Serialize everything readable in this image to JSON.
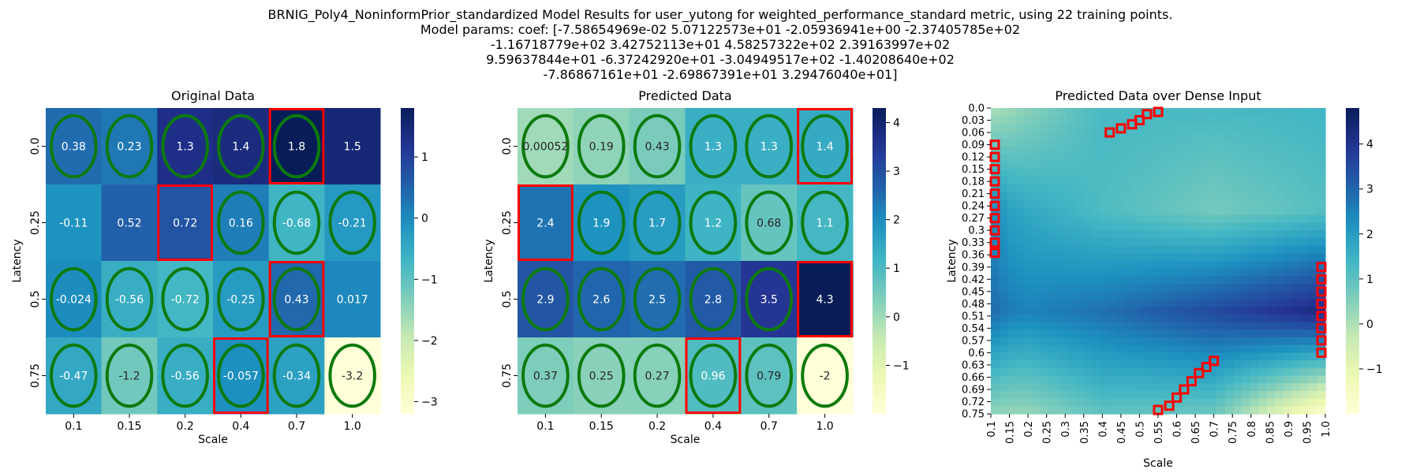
{
  "figure": {
    "title_lines": [
      "BRNIG_Poly4_NoninformPrior_standardized Model Results for user_yutong for weighted_performance_standard metric, using 22 training points.",
      "Model params: coef: [-7.58654969e-02  5.07122573e+01 -2.05936941e+00 -2.37405785e+02",
      "-1.16718779e+02  3.42752113e+01  4.58257322e+02  2.39163997e+02",
      "9.59637844e+01 -6.37242920e+01 -3.04949517e+02 -1.40208640e+02",
      "-7.86867161e+01 -2.69867391e+01  3.29476040e+01]"
    ]
  },
  "colormap": {
    "name": "YlGnBu",
    "stops": [
      "#ffffd9",
      "#edf8b1",
      "#c7e9b4",
      "#7fcdbb",
      "#41b6c4",
      "#1d91c0",
      "#225ea8",
      "#253494",
      "#081d58"
    ]
  },
  "colors": {
    "ellipse": "#0d7a0d",
    "highlight": "#ff0000",
    "text_light": "#ffffff",
    "text_dark": "#262626"
  },
  "chart_data": [
    {
      "type": "heatmap",
      "title": "Original Data",
      "xlabel": "Scale",
      "ylabel": "Latency",
      "x_categories": [
        "0.1",
        "0.15",
        "0.2",
        "0.4",
        "0.7",
        "1.0"
      ],
      "y_categories": [
        "0.0",
        "0.25",
        "0.5",
        "0.75"
      ],
      "values": [
        [
          0.38,
          0.23,
          1.3,
          1.4,
          1.8,
          1.5
        ],
        [
          -0.11,
          0.52,
          0.72,
          0.16,
          -0.68,
          -0.21
        ],
        [
          -0.024,
          -0.56,
          -0.72,
          -0.25,
          0.43,
          0.017
        ],
        [
          -0.47,
          -1.2,
          -0.56,
          -0.057,
          -0.34,
          -3.2
        ]
      ],
      "labels": [
        [
          "0.38",
          "0.23",
          "1.3",
          "1.4",
          "1.8",
          "1.5"
        ],
        [
          "-0.11",
          "0.52",
          "0.72",
          "0.16",
          "-0.68",
          "-0.21"
        ],
        [
          "-0.024",
          "-0.56",
          "-0.72",
          "-0.25",
          "0.43",
          "0.017"
        ],
        [
          "-0.47",
          "-1.2",
          "-0.56",
          "-0.057",
          "-0.34",
          "-3.2"
        ]
      ],
      "ellipses": [
        [
          0,
          0
        ],
        [
          0,
          1
        ],
        [
          0,
          2
        ],
        [
          0,
          3
        ],
        [
          0,
          4
        ],
        [
          1,
          3
        ],
        [
          1,
          4
        ],
        [
          1,
          5
        ],
        [
          2,
          0
        ],
        [
          2,
          1
        ],
        [
          2,
          2
        ],
        [
          2,
          3
        ],
        [
          2,
          4
        ],
        [
          3,
          0
        ],
        [
          3,
          1
        ],
        [
          3,
          2
        ],
        [
          3,
          3
        ],
        [
          3,
          4
        ],
        [
          3,
          5
        ]
      ],
      "highlights": [
        [
          0,
          4
        ],
        [
          1,
          2
        ],
        [
          2,
          4
        ],
        [
          3,
          3
        ]
      ],
      "colorbar": {
        "min": -3.2,
        "max": 1.8,
        "ticks": [
          1,
          0,
          -1,
          -2,
          -3
        ],
        "tick_labels": [
          "1",
          "0",
          "−1",
          "−2",
          "−3"
        ]
      }
    },
    {
      "type": "heatmap",
      "title": "Predicted Data",
      "xlabel": "Scale",
      "ylabel": "Latency",
      "x_categories": [
        "0.1",
        "0.15",
        "0.2",
        "0.4",
        "0.7",
        "1.0"
      ],
      "y_categories": [
        "0.0",
        "0.25",
        "0.5",
        "0.75"
      ],
      "values": [
        [
          0.00052,
          0.19,
          0.43,
          1.3,
          1.3,
          1.4
        ],
        [
          2.4,
          1.9,
          1.7,
          1.2,
          0.68,
          1.1
        ],
        [
          2.9,
          2.6,
          2.5,
          2.8,
          3.5,
          4.3
        ],
        [
          0.37,
          0.25,
          0.27,
          0.96,
          0.79,
          -2
        ]
      ],
      "labels": [
        [
          "0.00052",
          "0.19",
          "0.43",
          "1.3",
          "1.3",
          "1.4"
        ],
        [
          "2.4",
          "1.9",
          "1.7",
          "1.2",
          "0.68",
          "1.1"
        ],
        [
          "2.9",
          "2.6",
          "2.5",
          "2.8",
          "3.5",
          "4.3"
        ],
        [
          "0.37",
          "0.25",
          "0.27",
          "0.96",
          "0.79",
          "-2"
        ]
      ],
      "ellipses": [
        [
          0,
          0
        ],
        [
          0,
          1
        ],
        [
          0,
          2
        ],
        [
          0,
          3
        ],
        [
          0,
          4
        ],
        [
          0,
          5
        ],
        [
          1,
          1
        ],
        [
          1,
          2
        ],
        [
          1,
          3
        ],
        [
          1,
          4
        ],
        [
          1,
          5
        ],
        [
          2,
          0
        ],
        [
          2,
          1
        ],
        [
          2,
          2
        ],
        [
          2,
          3
        ],
        [
          2,
          4
        ],
        [
          3,
          0
        ],
        [
          3,
          1
        ],
        [
          3,
          2
        ],
        [
          3,
          3
        ],
        [
          3,
          4
        ],
        [
          3,
          5
        ]
      ],
      "highlights": [
        [
          0,
          5
        ],
        [
          1,
          0
        ],
        [
          2,
          5
        ],
        [
          3,
          3
        ]
      ],
      "colorbar": {
        "min": -2,
        "max": 4.3,
        "ticks": [
          4,
          3,
          2,
          1,
          0,
          -1
        ],
        "tick_labels": [
          "4",
          "3",
          "2",
          "1",
          "0",
          "−1"
        ]
      }
    },
    {
      "type": "heatmap",
      "title": "Predicted Data over Dense Input",
      "xlabel": "Scale",
      "ylabel": "Latency",
      "x_categories": [
        "0.1",
        "0.15",
        "0.2",
        "0.25",
        "0.3",
        "0.35",
        "0.4",
        "0.45",
        "0.5",
        "0.55",
        "0.6",
        "0.65",
        "0.7",
        "0.75",
        "0.8",
        "0.85",
        "0.9",
        "0.95",
        "1.0"
      ],
      "y_categories": [
        "0.0",
        "0.03",
        "0.06",
        "0.09",
        "0.12",
        "0.15",
        "0.18",
        "0.21",
        "0.24",
        "0.27",
        "0.3",
        "0.33",
        "0.36",
        "0.39",
        "0.42",
        "0.45",
        "0.48",
        "0.51",
        "0.54",
        "0.57",
        "0.6",
        "0.63",
        "0.66",
        "0.69",
        "0.72",
        "0.75"
      ],
      "x_range": [
        0.1,
        1.0
      ],
      "y_range": [
        0.0,
        0.75
      ],
      "resolution": [
        40,
        40
      ],
      "surface_anchor_x": [
        0.1,
        0.15,
        0.2,
        0.4,
        0.7,
        1.0
      ],
      "surface_anchor_y": [
        0.0,
        0.25,
        0.5,
        0.75
      ],
      "surface_anchor_values": [
        [
          0.00052,
          0.19,
          0.43,
          1.3,
          1.3,
          1.4
        ],
        [
          2.4,
          1.9,
          1.7,
          1.2,
          0.68,
          1.1
        ],
        [
          2.9,
          2.6,
          2.5,
          2.8,
          3.5,
          4.3
        ],
        [
          0.37,
          0.25,
          0.27,
          0.96,
          0.79,
          -2
        ]
      ],
      "highlight_paths": [
        [
          [
            0.42,
            0.06
          ],
          [
            0.45,
            0.05
          ],
          [
            0.48,
            0.04
          ],
          [
            0.5,
            0.03
          ],
          [
            0.52,
            0.015
          ],
          [
            0.55,
            0.0
          ]
        ],
        [
          [
            0.1,
            0.09
          ],
          [
            0.1,
            0.12
          ],
          [
            0.1,
            0.15
          ],
          [
            0.1,
            0.18
          ],
          [
            0.1,
            0.21
          ],
          [
            0.1,
            0.24
          ],
          [
            0.1,
            0.27
          ],
          [
            0.1,
            0.3
          ],
          [
            0.1,
            0.33
          ],
          [
            0.1,
            0.355
          ]
        ],
        [
          [
            1.0,
            0.39
          ],
          [
            1.0,
            0.42
          ],
          [
            1.0,
            0.45
          ],
          [
            1.0,
            0.48
          ],
          [
            1.0,
            0.51
          ],
          [
            1.0,
            0.54
          ],
          [
            1.0,
            0.57
          ],
          [
            1.0,
            0.6
          ]
        ],
        [
          [
            0.55,
            0.75
          ],
          [
            0.58,
            0.73
          ],
          [
            0.6,
            0.71
          ],
          [
            0.62,
            0.69
          ],
          [
            0.64,
            0.67
          ],
          [
            0.66,
            0.65
          ],
          [
            0.68,
            0.635
          ],
          [
            0.7,
            0.62
          ]
        ]
      ],
      "colorbar": {
        "min": -2,
        "max": 4.8,
        "ticks": [
          4,
          3,
          2,
          1,
          0,
          -1
        ],
        "tick_labels": [
          "4",
          "3",
          "2",
          "1",
          "0",
          "−1"
        ]
      }
    }
  ]
}
